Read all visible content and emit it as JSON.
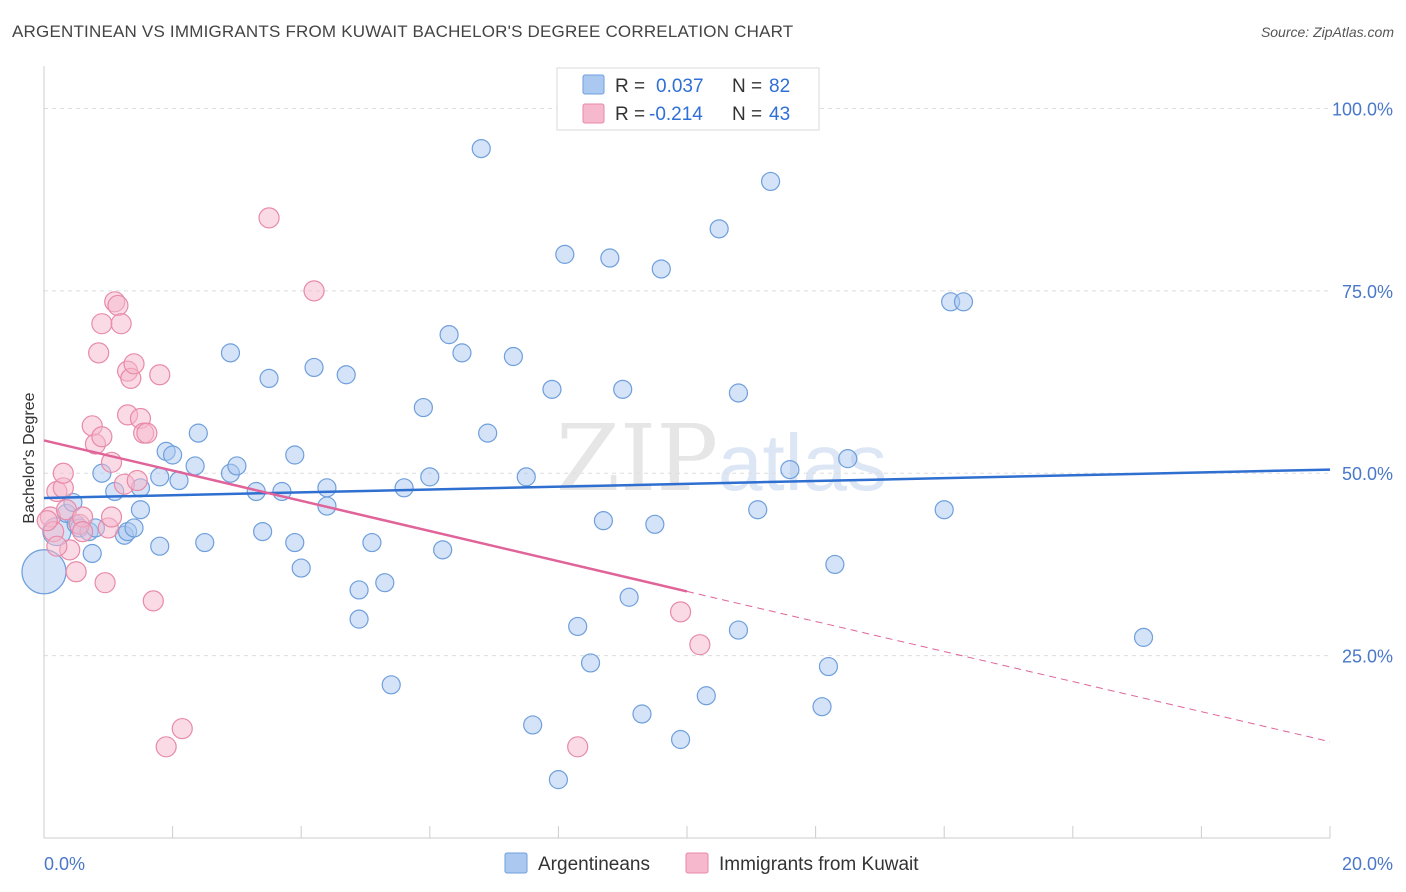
{
  "title": "ARGENTINEAN VS IMMIGRANTS FROM KUWAIT BACHELOR'S DEGREE CORRELATION CHART",
  "source": "Source: ZipAtlas.com",
  "watermark": {
    "zip": "ZIP",
    "atlas": "atlas"
  },
  "legend": {
    "r_label": "R =",
    "n_label": "N =",
    "entries": [
      {
        "name": "Argentineans",
        "r": "0.037",
        "n": "82"
      },
      {
        "name": "Immigrants from Kuwait",
        "r": "-0.214",
        "n": "43"
      }
    ]
  },
  "colors": {
    "blue_fill": "#aac8f0",
    "blue_stroke": "#6f9fdc",
    "blue_line": "#2f6fd0",
    "pink_fill": "#f6b8cc",
    "pink_stroke": "#e88aa8",
    "pink_line": "#e0649a"
  },
  "chart_data": {
    "type": "scatter",
    "title": "ARGENTINEAN VS IMMIGRANTS FROM KUWAIT BACHELOR'S DEGREE CORRELATION CHART",
    "xlabel": "",
    "ylabel": "Bachelor's Degree",
    "xlim": [
      0,
      20
    ],
    "ylim": [
      0,
      105
    ],
    "x_tick_labels": [
      "0.0%",
      "20.0%"
    ],
    "y_ticks": [
      25,
      50,
      75,
      100
    ],
    "y_tick_labels": [
      "25.0%",
      "50.0%",
      "75.0%",
      "100.0%"
    ],
    "grid": true,
    "series": [
      {
        "name": "Argentineans",
        "points": [
          [
            0.0,
            36.5,
            22
          ],
          [
            0.2,
            42,
            14
          ],
          [
            0.35,
            44.5,
            9
          ],
          [
            0.45,
            46,
            9
          ],
          [
            0.5,
            43,
            9
          ],
          [
            0.55,
            42.5,
            9
          ],
          [
            0.7,
            42,
            9
          ],
          [
            0.75,
            39,
            9
          ],
          [
            0.9,
            50,
            9
          ],
          [
            1.1,
            47.5,
            9
          ],
          [
            1.25,
            41.5,
            9
          ],
          [
            1.3,
            42,
            9
          ],
          [
            1.5,
            45,
            9
          ],
          [
            1.5,
            48,
            9
          ],
          [
            1.8,
            49.5,
            9
          ],
          [
            1.8,
            40,
            9
          ],
          [
            1.9,
            53,
            9
          ],
          [
            2.1,
            49,
            9
          ],
          [
            2.35,
            51,
            9
          ],
          [
            2.4,
            55.5,
            9
          ],
          [
            2.5,
            40.5,
            9
          ],
          [
            2.9,
            50,
            9
          ],
          [
            2.9,
            66.5,
            9
          ],
          [
            3.0,
            51,
            9
          ],
          [
            3.3,
            47.5,
            9
          ],
          [
            3.4,
            42,
            9
          ],
          [
            3.5,
            63,
            9
          ],
          [
            3.7,
            47.5,
            9
          ],
          [
            3.9,
            52.5,
            9
          ],
          [
            4.0,
            37,
            9
          ],
          [
            4.2,
            64.5,
            9
          ],
          [
            4.4,
            48,
            9
          ],
          [
            4.4,
            45.5,
            9
          ],
          [
            4.7,
            63.5,
            9
          ],
          [
            4.9,
            34,
            9
          ],
          [
            4.9,
            30,
            9
          ],
          [
            5.1,
            40.5,
            9
          ],
          [
            5.3,
            35,
            9
          ],
          [
            5.4,
            21,
            9
          ],
          [
            5.6,
            48,
            9
          ],
          [
            5.9,
            59,
            9
          ],
          [
            6.0,
            49.5,
            9
          ],
          [
            6.3,
            69,
            9
          ],
          [
            6.5,
            66.5,
            9
          ],
          [
            6.8,
            94.5,
            9
          ],
          [
            6.9,
            55.5,
            9
          ],
          [
            7.3,
            66,
            9
          ],
          [
            7.5,
            49.5,
            9
          ],
          [
            7.6,
            15.5,
            9
          ],
          [
            7.9,
            61.5,
            9
          ],
          [
            8.1,
            80,
            9
          ],
          [
            8.3,
            29,
            9
          ],
          [
            8.5,
            24,
            9
          ],
          [
            8.7,
            43.5,
            9
          ],
          [
            8.8,
            79.5,
            9
          ],
          [
            9.0,
            61.5,
            9
          ],
          [
            9.1,
            33,
            9
          ],
          [
            9.3,
            17,
            9
          ],
          [
            9.5,
            43,
            9
          ],
          [
            9.6,
            78,
            9
          ],
          [
            9.9,
            13.5,
            9
          ],
          [
            10.3,
            19.5,
            9
          ],
          [
            10.5,
            83.5,
            9
          ],
          [
            10.8,
            61,
            9
          ],
          [
            10.8,
            28.5,
            9
          ],
          [
            11.1,
            45,
            9
          ],
          [
            11.3,
            90,
            9
          ],
          [
            11.6,
            50.5,
            9
          ],
          [
            12.1,
            18,
            9
          ],
          [
            12.2,
            23.5,
            9
          ],
          [
            12.3,
            37.5,
            9
          ],
          [
            12.5,
            52,
            9
          ],
          [
            14.0,
            45,
            9
          ],
          [
            14.1,
            73.5,
            9
          ],
          [
            14.3,
            73.5,
            9
          ],
          [
            17.1,
            27.5,
            9
          ],
          [
            8.0,
            8,
            9
          ],
          [
            3.9,
            40.5,
            9
          ],
          [
            2.0,
            52.5,
            9
          ],
          [
            6.2,
            39.5,
            9
          ],
          [
            1.4,
            42.5,
            9
          ],
          [
            0.8,
            42.5,
            9
          ]
        ],
        "trend": {
          "x": [
            0,
            20
          ],
          "y": [
            46.6,
            50.5
          ]
        }
      },
      {
        "name": "Immigrants from Kuwait",
        "points": [
          [
            0.1,
            44,
            10
          ],
          [
            0.15,
            42,
            10
          ],
          [
            0.2,
            47.5,
            10
          ],
          [
            0.3,
            48,
            10
          ],
          [
            0.3,
            50,
            10
          ],
          [
            0.35,
            45,
            10
          ],
          [
            0.4,
            39.5,
            10
          ],
          [
            0.5,
            36.5,
            10
          ],
          [
            0.55,
            43,
            10
          ],
          [
            0.6,
            44,
            10
          ],
          [
            0.6,
            42,
            10
          ],
          [
            0.75,
            56.5,
            10
          ],
          [
            0.8,
            54,
            10
          ],
          [
            0.85,
            66.5,
            10
          ],
          [
            0.9,
            55,
            10
          ],
          [
            0.9,
            70.5,
            10
          ],
          [
            0.95,
            35,
            10
          ],
          [
            1.0,
            42.5,
            10
          ],
          [
            1.05,
            51.5,
            10
          ],
          [
            1.05,
            44,
            10
          ],
          [
            1.1,
            73.5,
            10
          ],
          [
            1.15,
            73,
            10
          ],
          [
            1.2,
            70.5,
            10
          ],
          [
            1.25,
            48.5,
            10
          ],
          [
            1.3,
            58,
            10
          ],
          [
            1.3,
            64,
            10
          ],
          [
            1.35,
            63,
            10
          ],
          [
            1.4,
            65,
            10
          ],
          [
            1.45,
            49,
            10
          ],
          [
            1.5,
            57.5,
            10
          ],
          [
            1.55,
            55.5,
            10
          ],
          [
            1.6,
            55.5,
            10
          ],
          [
            1.7,
            32.5,
            10
          ],
          [
            1.8,
            63.5,
            10
          ],
          [
            1.9,
            12.5,
            10
          ],
          [
            2.15,
            15,
            10
          ],
          [
            3.5,
            85,
            10
          ],
          [
            4.2,
            75,
            10
          ],
          [
            8.3,
            12.5,
            10
          ],
          [
            9.9,
            31,
            10
          ],
          [
            10.2,
            26.5,
            10
          ],
          [
            0.2,
            40,
            10
          ],
          [
            0.05,
            43.5,
            10
          ]
        ],
        "trend": {
          "x": [
            0,
            10
          ],
          "y": [
            54.5,
            33.8
          ]
        },
        "trend_extension": {
          "x": [
            10,
            20
          ],
          "y": [
            33.8,
            13.2
          ]
        }
      }
    ]
  }
}
